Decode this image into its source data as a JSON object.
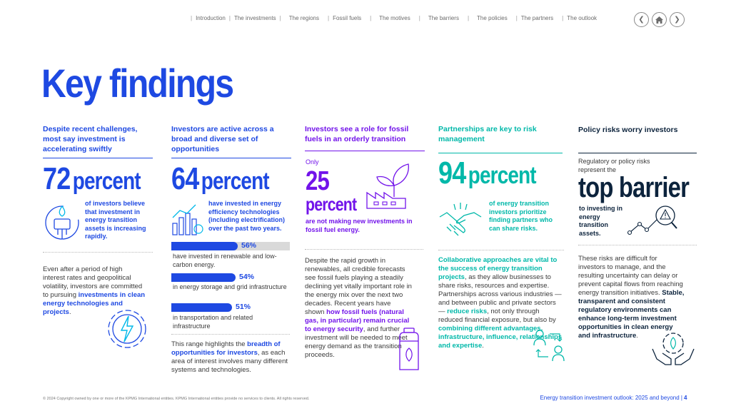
{
  "nav": {
    "items": [
      "Introduction",
      "The investments",
      "The regions",
      "Fossil fuels",
      "The motives",
      "The barriers",
      "The policies",
      "The partners",
      "The outlook"
    ]
  },
  "title": "Key findings",
  "colors": {
    "blue": "#1e49e2",
    "purple": "#7213ea",
    "teal": "#00b8a9",
    "navy": "#0c233c"
  },
  "col1": {
    "heading": "Despite recent challenges, most say investment is accelerating swiftly",
    "number": "72",
    "unit": "percent",
    "desc": "of investors believe that investment in energy transition assets is increasing rapidly.",
    "body1": "Even after a period of high interest rates and geopolitical volatility, investors are committed to pursuing ",
    "body_bold": "investments in clean energy technologies and projects",
    "body2": "."
  },
  "col2": {
    "heading": "Investors are active across a broad and diverse set of opportunities",
    "number": "64",
    "unit": "percent",
    "desc": "have invested in energy efficiency technologies (including electrification) over the past two years.",
    "bars": [
      {
        "value": 56,
        "label": "56%",
        "text": "have invested in renewable and low-carbon energy."
      },
      {
        "value": 54,
        "label": "54%",
        "text": "in energy storage and grid infrastructure"
      },
      {
        "value": 51,
        "label": "51%",
        "text": "in transportation and related infrastructure"
      }
    ],
    "body1": "This range highlights the ",
    "body_bold": "breadth of opportunities for investors",
    "body2": ", as each area of interest involves many different systems and technologies."
  },
  "col3": {
    "heading": "Investors see a role for fossil fuels in an orderly transition",
    "only": "Only",
    "number": "25",
    "unit": "percent",
    "desc": "are not making new investments in fossil fuel energy.",
    "body1": "Despite the rapid growth in renewables, all credible forecasts see fossil fuels playing a steadily declining yet vitally important role in the energy mix over the next two decades. Recent years have shown ",
    "body_bold": "how fossil fuels (natural gas, in particular) remain crucial to energy security",
    "body2": ", and further investment will be needed to meet energy demand as the transition proceeds."
  },
  "col4": {
    "heading": "Partnerships are key to risk management",
    "number": "94",
    "unit": "percent",
    "desc": "of energy transition investors prioritize finding partners who can share risks.",
    "body_bold1": "Collaborative approaches are vital to the success of energy transition projects",
    "body1": ", as they allow businesses to share risks, resources and expertise. Partnerships across various industries — and between public and private sectors — ",
    "body_bold2": "reduce risks",
    "body2": ", not only through reduced financial exposure, but also by ",
    "body_bold3": "combining different advantages, infrastructure, influence, relationships and expertise",
    "body3": "."
  },
  "col5": {
    "heading": "Policy risks worry investors",
    "intro": "Regulatory or policy risks represent the",
    "big": "top barrier",
    "desc": "to investing in energy transition assets.",
    "body1": "These risks are difficult for investors to manage, and the resulting uncertainty can delay or prevent capital flows from reaching energy transition initiatives. ",
    "body_bold": "Stable, transparent and consistent regulatory environments can enhance long-term investment opportunities in clean energy and infrastructure",
    "body2": "."
  },
  "footer": {
    "copyright": "© 2024 Copyright owned by one or more of the KPMG International entities. KPMG International entities provide no services to clients. All rights reserved.",
    "doc_title": "Energy transition investment outlook: 2025 and beyond",
    "page": "4"
  }
}
